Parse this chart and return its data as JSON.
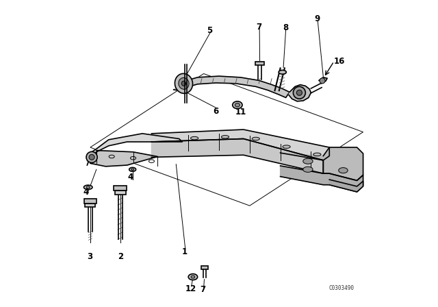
{
  "bg_color": "#ffffff",
  "line_color": "#000000",
  "fig_width": 6.4,
  "fig_height": 4.48,
  "dpi": 100,
  "diagram_code": "C0303490"
}
